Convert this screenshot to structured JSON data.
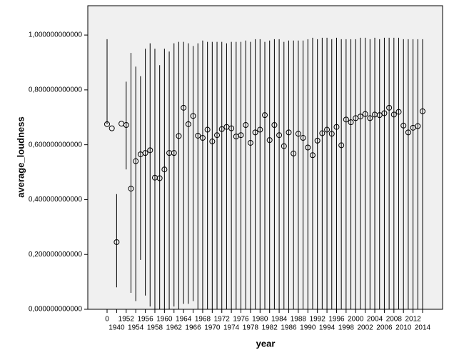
{
  "chart_data": {
    "type": "range-scatter",
    "y_label": "average_loudness",
    "x_label": "year",
    "categories": [
      "0",
      null,
      "1940",
      null,
      "1952",
      null,
      "1954",
      null,
      "1956",
      null,
      "1958",
      null,
      "1960",
      null,
      "1962",
      null,
      "1964",
      null,
      "1966",
      null,
      "1968",
      null,
      "1970",
      null,
      "1972",
      null,
      "1974",
      null,
      "1976",
      null,
      "1978",
      null,
      "1980",
      null,
      "1982",
      null,
      "1984",
      null,
      "1986",
      null,
      "1988",
      null,
      "1990",
      null,
      "1992",
      null,
      "1994",
      null,
      "1996",
      null,
      "1998",
      null,
      "2000",
      null,
      "2002",
      null,
      "2004",
      null,
      "2006",
      null,
      "2008",
      null,
      "2010",
      null,
      "2012",
      null,
      "2014"
    ],
    "values": [
      0.675,
      0.66,
      0.245,
      0.677,
      0.672,
      0.44,
      0.54,
      0.565,
      0.57,
      0.58,
      0.48,
      0.478,
      0.51,
      0.57,
      0.57,
      0.632,
      0.735,
      0.675,
      0.705,
      0.633,
      0.625,
      0.655,
      0.612,
      0.635,
      0.657,
      0.665,
      0.66,
      0.63,
      0.635,
      0.672,
      0.607,
      0.645,
      0.655,
      0.708,
      0.617,
      0.672,
      0.635,
      0.595,
      0.645,
      0.568,
      0.64,
      0.625,
      0.59,
      0.562,
      0.615,
      0.642,
      0.655,
      0.64,
      0.665,
      0.598,
      0.692,
      0.682,
      0.697,
      0.703,
      0.712,
      0.697,
      0.71,
      0.708,
      0.715,
      0.735,
      0.71,
      0.72,
      0.67,
      0.645,
      0.662,
      0.668,
      0.722
    ],
    "high": [
      0.985,
      0.66,
      0.42,
      0.677,
      0.83,
      0.935,
      0.885,
      0.85,
      0.95,
      0.97,
      0.95,
      0.89,
      0.95,
      0.94,
      0.97,
      0.975,
      0.975,
      0.97,
      0.96,
      0.97,
      0.98,
      0.975,
      0.975,
      0.975,
      0.975,
      0.97,
      0.975,
      0.975,
      0.975,
      0.98,
      0.975,
      0.985,
      0.985,
      0.975,
      0.98,
      0.985,
      0.985,
      0.975,
      0.98,
      0.98,
      0.98,
      0.98,
      0.985,
      0.99,
      0.985,
      0.99,
      0.99,
      0.985,
      0.99,
      0.985,
      0.985,
      0.985,
      0.985,
      0.99,
      0.99,
      0.985,
      0.99,
      0.985,
      0.99,
      0.99,
      0.99,
      0.99,
      0.985,
      0.985,
      0.985,
      0.985,
      0.985
    ],
    "low": [
      0.675,
      0.66,
      0.08,
      0.677,
      0.51,
      0.06,
      0.03,
      0.18,
      0.05,
      0.01,
      0,
      0,
      0,
      0,
      0.01,
      0,
      0.02,
      0.02,
      0.03,
      0,
      0,
      0,
      0,
      0,
      0,
      0,
      0,
      0,
      0,
      0,
      0,
      0,
      0,
      0,
      0,
      0,
      0,
      0,
      0,
      0,
      0,
      0,
      0,
      0,
      0,
      0,
      0,
      0,
      0,
      0,
      0,
      0,
      0,
      0,
      0,
      0,
      0,
      0,
      0,
      0,
      0,
      0,
      0,
      0,
      0,
      0,
      0
    ],
    "ylim": [
      0,
      1.107
    ],
    "yticks": [
      {
        "value": 0,
        "label": "0,000000000000"
      },
      {
        "value": 0.2,
        "label": "0,200000000000"
      },
      {
        "value": 0.4,
        "label": "0,400000000000"
      },
      {
        "value": 0.6,
        "label": "0,600000000000"
      },
      {
        "value": 0.8,
        "label": "0,800000000000"
      },
      {
        "value": 1,
        "label": "1,000000000000"
      }
    ],
    "color": "#000000",
    "background": "#f0f0f0"
  }
}
